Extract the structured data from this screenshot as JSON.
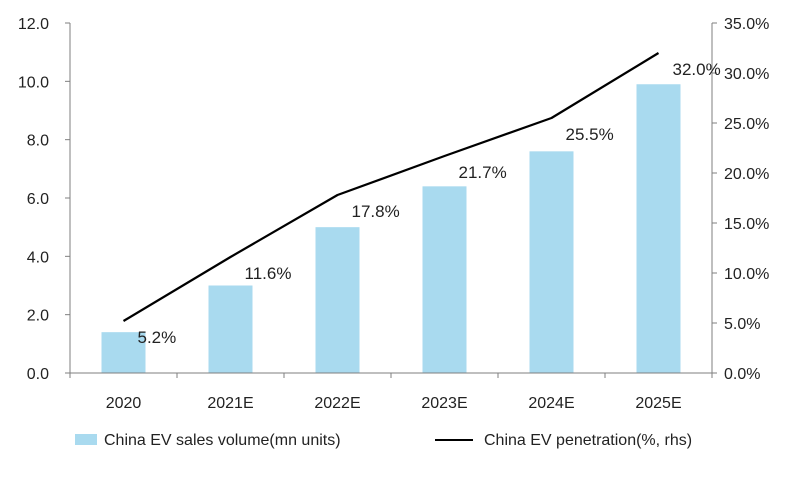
{
  "chart_data": {
    "type": "bar",
    "categories": [
      "2020",
      "2021E",
      "2022E",
      "2023E",
      "2024E",
      "2025E"
    ],
    "series": [
      {
        "name": "China EV sales volume(mn units)",
        "kind": "bar",
        "axis": "left",
        "color": "#a9daef",
        "values": [
          1.4,
          3.0,
          5.0,
          6.4,
          7.6,
          9.9
        ]
      },
      {
        "name": "China EV penetration(%, rhs)",
        "kind": "line",
        "axis": "right",
        "color": "#000000",
        "values": [
          5.2,
          11.6,
          17.8,
          21.7,
          25.5,
          32.0
        ],
        "labels": [
          "5.2%",
          "11.6%",
          "17.8%",
          "21.7%",
          "25.5%",
          "32.0%"
        ]
      }
    ],
    "y_left": {
      "min": 0,
      "max": 12,
      "ticks": [
        "0.0",
        "2.0",
        "4.0",
        "6.0",
        "8.0",
        "10.0",
        "12.0"
      ]
    },
    "y_right": {
      "min": 0,
      "max": 35,
      "ticks": [
        "0.0%",
        "5.0%",
        "10.0%",
        "15.0%",
        "20.0%",
        "25.0%",
        "30.0%",
        "35.0%"
      ]
    },
    "grid": false,
    "legend_position": "bottom"
  }
}
